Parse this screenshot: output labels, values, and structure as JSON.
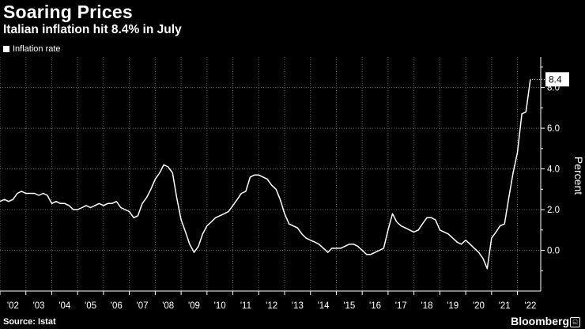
{
  "header": {
    "title": "Soaring Prices",
    "subtitle": "Italian inflation hit 8.4% in July"
  },
  "footer": {
    "source": "Source: Istat",
    "brand": "Bloomberg"
  },
  "colors": {
    "background": "#000000",
    "line": "#ffffff",
    "grid": "#666666"
  },
  "chart_data": {
    "type": "line",
    "title": "Soaring Prices",
    "subtitle": "Italian inflation hit 8.4% in July",
    "xlabel": "",
    "ylabel": "Percent",
    "ylim": [
      -2.0,
      9.5
    ],
    "xlim": [
      2002.0,
      2022.9
    ],
    "x_ticks": [
      2002,
      2003,
      2004,
      2005,
      2006,
      2007,
      2008,
      2009,
      2010,
      2011,
      2012,
      2013,
      2014,
      2015,
      2016,
      2017,
      2018,
      2019,
      2020,
      2021,
      2022
    ],
    "x_tick_labels": [
      "'02",
      "'03",
      "'04",
      "'05",
      "'06",
      "'07",
      "'08",
      "'09",
      "'10",
      "'11",
      "'12",
      "'13",
      "'14",
      "'15",
      "'16",
      "'17",
      "'18",
      "'19",
      "'20",
      "'21",
      "'22"
    ],
    "y_ticks": [
      0.0,
      2.0,
      4.0,
      6.0,
      8.0
    ],
    "y_tick_labels": [
      "0.0",
      "2.0",
      "4.0",
      "6.0",
      "8.0"
    ],
    "grid": true,
    "last_value_label": "8.4",
    "series": [
      {
        "name": "Inflation rate",
        "x": [
          2002.0,
          2002.17,
          2002.33,
          2002.5,
          2002.67,
          2002.83,
          2003.0,
          2003.17,
          2003.33,
          2003.5,
          2003.67,
          2003.83,
          2004.0,
          2004.17,
          2004.33,
          2004.5,
          2004.67,
          2004.83,
          2005.0,
          2005.17,
          2005.33,
          2005.5,
          2005.67,
          2005.83,
          2006.0,
          2006.17,
          2006.33,
          2006.5,
          2006.67,
          2006.83,
          2007.0,
          2007.17,
          2007.33,
          2007.5,
          2007.67,
          2007.83,
          2008.0,
          2008.17,
          2008.33,
          2008.5,
          2008.67,
          2008.83,
          2009.0,
          2009.17,
          2009.33,
          2009.5,
          2009.67,
          2009.83,
          2010.0,
          2010.17,
          2010.33,
          2010.5,
          2010.67,
          2010.83,
          2011.0,
          2011.17,
          2011.33,
          2011.5,
          2011.67,
          2011.83,
          2012.0,
          2012.17,
          2012.33,
          2012.5,
          2012.67,
          2012.83,
          2013.0,
          2013.17,
          2013.33,
          2013.5,
          2013.67,
          2013.83,
          2014.0,
          2014.17,
          2014.33,
          2014.5,
          2014.67,
          2014.83,
          2015.0,
          2015.17,
          2015.33,
          2015.5,
          2015.67,
          2015.83,
          2016.0,
          2016.17,
          2016.33,
          2016.5,
          2016.67,
          2016.83,
          2017.0,
          2017.17,
          2017.33,
          2017.5,
          2017.67,
          2017.83,
          2018.0,
          2018.17,
          2018.33,
          2018.5,
          2018.67,
          2018.83,
          2019.0,
          2019.17,
          2019.33,
          2019.5,
          2019.67,
          2019.83,
          2020.0,
          2020.17,
          2020.33,
          2020.5,
          2020.67,
          2020.83,
          2021.0,
          2021.17,
          2021.33,
          2021.5,
          2021.67,
          2021.83,
          2022.0,
          2022.17,
          2022.33,
          2022.5
        ],
        "values": [
          2.4,
          2.5,
          2.4,
          2.5,
          2.8,
          2.9,
          2.8,
          2.8,
          2.8,
          2.7,
          2.8,
          2.7,
          2.3,
          2.4,
          2.3,
          2.3,
          2.2,
          2.0,
          2.0,
          2.1,
          2.2,
          2.1,
          2.2,
          2.3,
          2.2,
          2.3,
          2.3,
          2.4,
          2.1,
          2.0,
          1.9,
          1.6,
          1.7,
          2.3,
          2.6,
          3.0,
          3.5,
          3.8,
          4.2,
          4.1,
          3.8,
          2.6,
          1.5,
          0.9,
          0.3,
          -0.1,
          0.2,
          0.8,
          1.2,
          1.4,
          1.6,
          1.7,
          1.8,
          1.9,
          2.2,
          2.5,
          2.8,
          2.9,
          3.6,
          3.7,
          3.7,
          3.6,
          3.5,
          3.2,
          3.0,
          2.5,
          1.8,
          1.3,
          1.2,
          1.1,
          0.8,
          0.6,
          0.5,
          0.4,
          0.3,
          0.1,
          -0.1,
          0.1,
          0.1,
          0.1,
          0.2,
          0.3,
          0.3,
          0.2,
          0.0,
          -0.2,
          -0.2,
          -0.1,
          0.0,
          0.1,
          1.0,
          1.8,
          1.4,
          1.2,
          1.1,
          1.0,
          0.9,
          1.0,
          1.3,
          1.6,
          1.6,
          1.5,
          1.0,
          0.9,
          0.8,
          0.6,
          0.4,
          0.3,
          0.5,
          0.3,
          0.1,
          -0.1,
          -0.4,
          -0.9,
          0.6,
          0.9,
          1.2,
          1.3,
          2.6,
          3.8,
          4.8,
          6.7,
          6.8,
          8.4
        ]
      }
    ]
  }
}
